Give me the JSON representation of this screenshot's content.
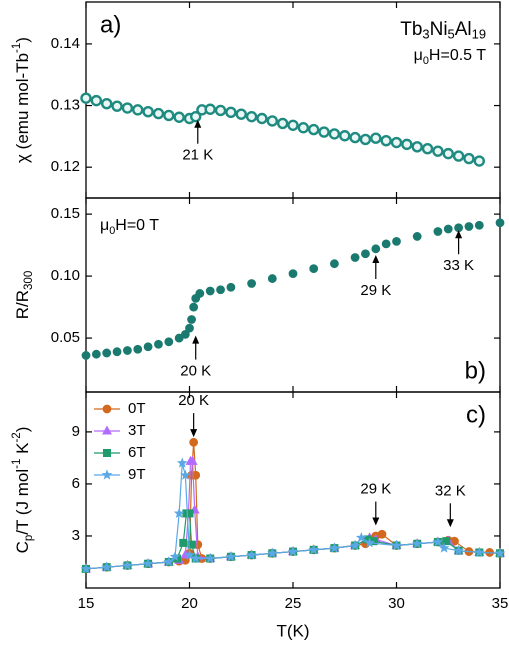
{
  "chart_data": [
    {
      "type": "scatter",
      "panel_label": "a)",
      "label_corner": "top-left",
      "ylabel": [
        {
          "text": "χ (emu mol-Tb"
        },
        {
          "text": "-1",
          "script": "sup"
        },
        {
          "text": ")"
        }
      ],
      "ylim": [
        0.115,
        0.1468
      ],
      "yticks": [
        0.12,
        0.13,
        0.14
      ],
      "notes": [
        {
          "corner": "top-right",
          "segments": [
            {
              "text": "Tb"
            },
            {
              "text": "3",
              "script": "sub"
            },
            {
              "text": "Ni"
            },
            {
              "text": "5",
              "script": "sub"
            },
            {
              "text": "Al"
            },
            {
              "text": "19",
              "script": "sub"
            }
          ]
        },
        {
          "corner": "top-right",
          "segments": [
            {
              "text": "μ"
            },
            {
              "text": "0",
              "script": "sub"
            },
            {
              "text": "H=0.5 T"
            }
          ]
        }
      ],
      "series": [
        {
          "color": "#1f8a80",
          "marker": "circle-open",
          "x": [
            15,
            15.5,
            16,
            16.5,
            17,
            17.5,
            18,
            18.5,
            19,
            19.5,
            20,
            20.3,
            20.6,
            21,
            21.5,
            22,
            22.5,
            23,
            23.5,
            24,
            24.5,
            25,
            25.5,
            26,
            26.5,
            27,
            27.5,
            28,
            28.5,
            29,
            29.5,
            30,
            30.5,
            31,
            31.5,
            32,
            32.5,
            33,
            33.5,
            34
          ],
          "values": [
            0.1312,
            0.1308,
            0.1303,
            0.1299,
            0.1296,
            0.1293,
            0.129,
            0.1287,
            0.1284,
            0.1281,
            0.1279,
            0.1282,
            0.1293,
            0.1294,
            0.1292,
            0.1289,
            0.1286,
            0.1282,
            0.1279,
            0.1275,
            0.1271,
            0.1268,
            0.1264,
            0.1261,
            0.1257,
            0.1254,
            0.1251,
            0.1248,
            0.1245,
            0.1247,
            0.1243,
            0.124,
            0.1237,
            0.1233,
            0.123,
            0.1226,
            0.1222,
            0.1218,
            0.1214,
            0.121
          ]
        }
      ],
      "annotations": [
        {
          "text": "21 K",
          "x": 20.4,
          "y": 0.1277,
          "dir": "up"
        }
      ]
    },
    {
      "type": "scatter",
      "panel_label": "b)",
      "label_corner": "bottom-right",
      "ylabel": [
        {
          "text": "R/R"
        },
        {
          "text": "300",
          "script": "sub"
        }
      ],
      "ylim": [
        0.0065,
        0.163
      ],
      "yticks": [
        0.05,
        {
          "value": 0.1,
          "label": "0.10"
        },
        0.15
      ],
      "notes": [
        {
          "corner": "top-left",
          "segments": [
            {
              "text": "μ"
            },
            {
              "text": "0",
              "script": "sub"
            },
            {
              "text": "H=0 T"
            }
          ]
        }
      ],
      "series": [
        {
          "color": "#1a7a70",
          "marker": "circle",
          "x": [
            15,
            15.5,
            16,
            16.5,
            17,
            17.5,
            18,
            18.5,
            19,
            19.5,
            19.8,
            20,
            20.1,
            20.2,
            20.3,
            20.5,
            21,
            21.5,
            22,
            23,
            24,
            25,
            26,
            27,
            28,
            28.5,
            29,
            29.5,
            30,
            31,
            32,
            32.5,
            33,
            33.5,
            34,
            35
          ],
          "values": [
            0.036,
            0.037,
            0.038,
            0.039,
            0.04,
            0.041,
            0.043,
            0.045,
            0.047,
            0.05,
            0.053,
            0.058,
            0.065,
            0.075,
            0.082,
            0.086,
            0.088,
            0.089,
            0.091,
            0.094,
            0.098,
            0.102,
            0.106,
            0.11,
            0.115,
            0.118,
            0.122,
            0.126,
            0.128,
            0.132,
            0.136,
            0.138,
            0.139,
            0.14,
            0.141,
            0.143
          ]
        }
      ],
      "annotations": [
        {
          "text": "20 K",
          "x": 20.3,
          "y": 0.052,
          "dir": "up"
        },
        {
          "text": "29 K",
          "x": 29,
          "y": 0.117,
          "dir": "up"
        },
        {
          "text": "33 K",
          "x": 33,
          "y": 0.137,
          "dir": "up"
        }
      ]
    },
    {
      "type": "line",
      "panel_label": "c)",
      "label_corner": "top-right",
      "ylabel": [
        {
          "text": "C"
        },
        {
          "text": "p",
          "script": "sub"
        },
        {
          "text": "/T (J mol"
        },
        {
          "text": "-1",
          "script": "sup"
        },
        {
          "text": " K"
        },
        {
          "text": "-2",
          "script": "sup"
        },
        {
          "text": ")"
        }
      ],
      "xlabel": "T(K)",
      "xlim": [
        15,
        35
      ],
      "xticks": [
        15,
        20,
        25,
        30,
        35
      ],
      "ylim": [
        0,
        11.3
      ],
      "yticks": [
        3,
        6,
        9
      ],
      "legend": "top-left",
      "series": [
        {
          "name": "0T",
          "color": "#d2691e",
          "marker": "circle",
          "x": [
            15,
            16,
            17,
            18,
            19,
            19.5,
            19.8,
            20,
            20.1,
            20.2,
            20.3,
            20.4,
            20.6,
            21,
            22,
            23,
            24,
            25,
            26,
            27,
            28,
            28.5,
            29,
            29.3,
            30,
            31,
            32,
            32.5,
            32.8,
            33.5,
            34.5,
            35
          ],
          "values": [
            1.1,
            1.2,
            1.3,
            1.4,
            1.5,
            1.55,
            1.6,
            2.0,
            6.5,
            8.4,
            6.5,
            2.5,
            1.7,
            1.7,
            1.8,
            1.9,
            2.0,
            2.1,
            2.2,
            2.3,
            2.45,
            2.55,
            3.0,
            3.1,
            2.45,
            2.55,
            2.65,
            2.75,
            2.7,
            2.1,
            2.05,
            2.0
          ]
        },
        {
          "name": "3T",
          "color": "#b36bff",
          "marker": "triangle",
          "x": [
            15,
            16,
            17,
            18,
            19,
            19.5,
            19.8,
            19.95,
            20.05,
            20.15,
            20.25,
            20.4,
            21,
            22,
            23,
            24,
            25,
            26,
            27,
            28,
            28.7,
            29,
            30,
            31,
            32,
            32.5,
            33,
            34,
            35
          ],
          "values": [
            1.1,
            1.2,
            1.3,
            1.4,
            1.5,
            1.6,
            1.9,
            4.3,
            7.3,
            7.3,
            4.5,
            1.8,
            1.7,
            1.8,
            1.9,
            2.0,
            2.1,
            2.2,
            2.3,
            2.45,
            2.9,
            2.8,
            2.45,
            2.55,
            2.65,
            2.7,
            2.15,
            2.05,
            2.0
          ]
        },
        {
          "name": "6T",
          "color": "#1f9a6a",
          "marker": "square",
          "x": [
            15,
            16,
            17,
            18,
            19,
            19.4,
            19.7,
            19.85,
            20,
            20.1,
            20.3,
            21,
            22,
            23,
            24,
            25,
            26,
            27,
            28,
            28.6,
            28.9,
            30,
            31,
            32,
            32.4,
            33,
            34,
            35
          ],
          "values": [
            1.1,
            1.2,
            1.3,
            1.4,
            1.5,
            1.7,
            2.6,
            4.3,
            4.3,
            2.5,
            1.7,
            1.7,
            1.8,
            1.9,
            2.0,
            2.1,
            2.2,
            2.3,
            2.45,
            2.8,
            2.7,
            2.45,
            2.55,
            2.65,
            2.7,
            2.15,
            2.05,
            2.0
          ]
        },
        {
          "name": "9T",
          "color": "#5aa8e6",
          "marker": "star",
          "x": [
            15,
            16,
            17,
            18,
            19,
            19.3,
            19.5,
            19.65,
            19.8,
            20,
            20.3,
            21,
            22,
            23,
            24,
            25,
            26,
            27,
            28,
            28.3,
            28.7,
            30,
            31,
            32,
            32.3,
            33,
            34,
            35
          ],
          "values": [
            1.1,
            1.2,
            1.3,
            1.4,
            1.5,
            1.8,
            4.3,
            7.2,
            6.5,
            1.9,
            1.7,
            1.7,
            1.8,
            1.9,
            2.0,
            2.1,
            2.2,
            2.3,
            2.45,
            2.9,
            2.6,
            2.45,
            2.55,
            2.65,
            2.3,
            2.15,
            2.05,
            2.0
          ]
        }
      ],
      "annotations": [
        {
          "text": "20 K",
          "x": 20.2,
          "y": 8.7,
          "dir": "down"
        },
        {
          "text": "29 K",
          "x": 29,
          "y": 3.6,
          "dir": "down"
        },
        {
          "text": "32 K",
          "x": 32.6,
          "y": 3.5,
          "dir": "down"
        }
      ]
    }
  ]
}
